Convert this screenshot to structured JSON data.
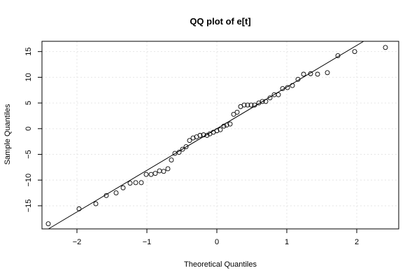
{
  "chart_data": {
    "type": "scatter",
    "title": "QQ plot of e[t]",
    "xlabel": "Theoretical Quantiles",
    "ylabel": "Sample Quantiles",
    "xlim": [
      -2.5,
      2.6
    ],
    "ylim": [
      -19.5,
      17.0
    ],
    "xticks": [
      -2,
      -1,
      0,
      1,
      2
    ],
    "xtick_labels": [
      "−2",
      "−1",
      "0",
      "1",
      "2"
    ],
    "yticks": [
      -15,
      -10,
      -5,
      0,
      5,
      10,
      15
    ],
    "ytick_labels": [
      "−15",
      "−10",
      "−5",
      "0",
      "5",
      "10",
      "15"
    ],
    "grid": true,
    "points": [
      {
        "x": -2.41,
        "y": -18.5
      },
      {
        "x": -1.97,
        "y": -15.6
      },
      {
        "x": -1.73,
        "y": -14.6
      },
      {
        "x": -1.58,
        "y": -13.0
      },
      {
        "x": -1.44,
        "y": -12.5
      },
      {
        "x": -1.34,
        "y": -11.5
      },
      {
        "x": -1.24,
        "y": -10.6
      },
      {
        "x": -1.16,
        "y": -10.5
      },
      {
        "x": -1.08,
        "y": -10.5
      },
      {
        "x": -1.01,
        "y": -8.9
      },
      {
        "x": -0.94,
        "y": -8.9
      },
      {
        "x": -0.88,
        "y": -8.7
      },
      {
        "x": -0.82,
        "y": -8.2
      },
      {
        "x": -0.76,
        "y": -8.3
      },
      {
        "x": -0.7,
        "y": -7.8
      },
      {
        "x": -0.65,
        "y": -6.1
      },
      {
        "x": -0.6,
        "y": -4.8
      },
      {
        "x": -0.54,
        "y": -4.6
      },
      {
        "x": -0.49,
        "y": -4.0
      },
      {
        "x": -0.44,
        "y": -3.5
      },
      {
        "x": -0.39,
        "y": -2.3
      },
      {
        "x": -0.34,
        "y": -1.8
      },
      {
        "x": -0.29,
        "y": -1.6
      },
      {
        "x": -0.24,
        "y": -1.3
      },
      {
        "x": -0.19,
        "y": -1.2
      },
      {
        "x": -0.14,
        "y": -1.3
      },
      {
        "x": -0.1,
        "y": -1.0
      },
      {
        "x": -0.05,
        "y": -0.7
      },
      {
        "x": 0.0,
        "y": -0.4
      },
      {
        "x": 0.05,
        "y": -0.2
      },
      {
        "x": 0.1,
        "y": 0.5
      },
      {
        "x": 0.14,
        "y": 0.7
      },
      {
        "x": 0.19,
        "y": 0.9
      },
      {
        "x": 0.24,
        "y": 2.8
      },
      {
        "x": 0.29,
        "y": 3.2
      },
      {
        "x": 0.34,
        "y": 4.3
      },
      {
        "x": 0.39,
        "y": 4.6
      },
      {
        "x": 0.44,
        "y": 4.6
      },
      {
        "x": 0.49,
        "y": 4.6
      },
      {
        "x": 0.54,
        "y": 4.6
      },
      {
        "x": 0.6,
        "y": 5.0
      },
      {
        "x": 0.65,
        "y": 5.3
      },
      {
        "x": 0.7,
        "y": 5.3
      },
      {
        "x": 0.76,
        "y": 6.0
      },
      {
        "x": 0.82,
        "y": 6.6
      },
      {
        "x": 0.88,
        "y": 6.6
      },
      {
        "x": 0.94,
        "y": 7.8
      },
      {
        "x": 1.01,
        "y": 8.0
      },
      {
        "x": 1.08,
        "y": 8.4
      },
      {
        "x": 1.16,
        "y": 9.6
      },
      {
        "x": 1.24,
        "y": 10.6
      },
      {
        "x": 1.34,
        "y": 10.7
      },
      {
        "x": 1.44,
        "y": 10.6
      },
      {
        "x": 1.58,
        "y": 10.9
      },
      {
        "x": 1.73,
        "y": 14.2
      },
      {
        "x": 1.97,
        "y": 15.0
      },
      {
        "x": 2.41,
        "y": 15.8
      }
    ],
    "reference_line": {
      "intercept": 0.0,
      "slope": 8.1
    }
  }
}
